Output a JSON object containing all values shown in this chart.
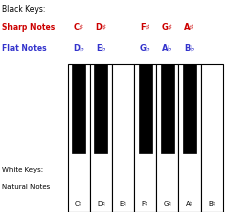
{
  "title_black": "Black Keys:",
  "label_sharp": "Sharp Notes",
  "label_flat": "Flat Notes",
  "label_white": "White Keys:",
  "label_natural": "Natural Notes",
  "sharp_notes": [
    "C♯",
    "D♯",
    "F♯",
    "G♯",
    "A♯"
  ],
  "flat_notes": [
    "D♭",
    "E♭",
    "G♭",
    "A♭",
    "B♭"
  ],
  "natural_notes": [
    "C♮",
    "D♮",
    "E♮",
    "F♮",
    "G♮",
    "A♮",
    "B♮"
  ],
  "white_key_count": 7,
  "black_key_positions": [
    0.5,
    1.5,
    3.5,
    4.5,
    5.5
  ],
  "color_sharp": "#cc0000",
  "color_flat": "#3333cc",
  "color_natural": "#000000",
  "bg_color": "#ffffff",
  "sharp_map": {
    "0": "C♯",
    "1": "D♯",
    "2": "F♯",
    "3": "G♯",
    "4": "A♯"
  },
  "flat_map": {
    "0": "D♭",
    "1": "E♭",
    "2": "G♭",
    "3": "A♭",
    "4": "B♭"
  }
}
